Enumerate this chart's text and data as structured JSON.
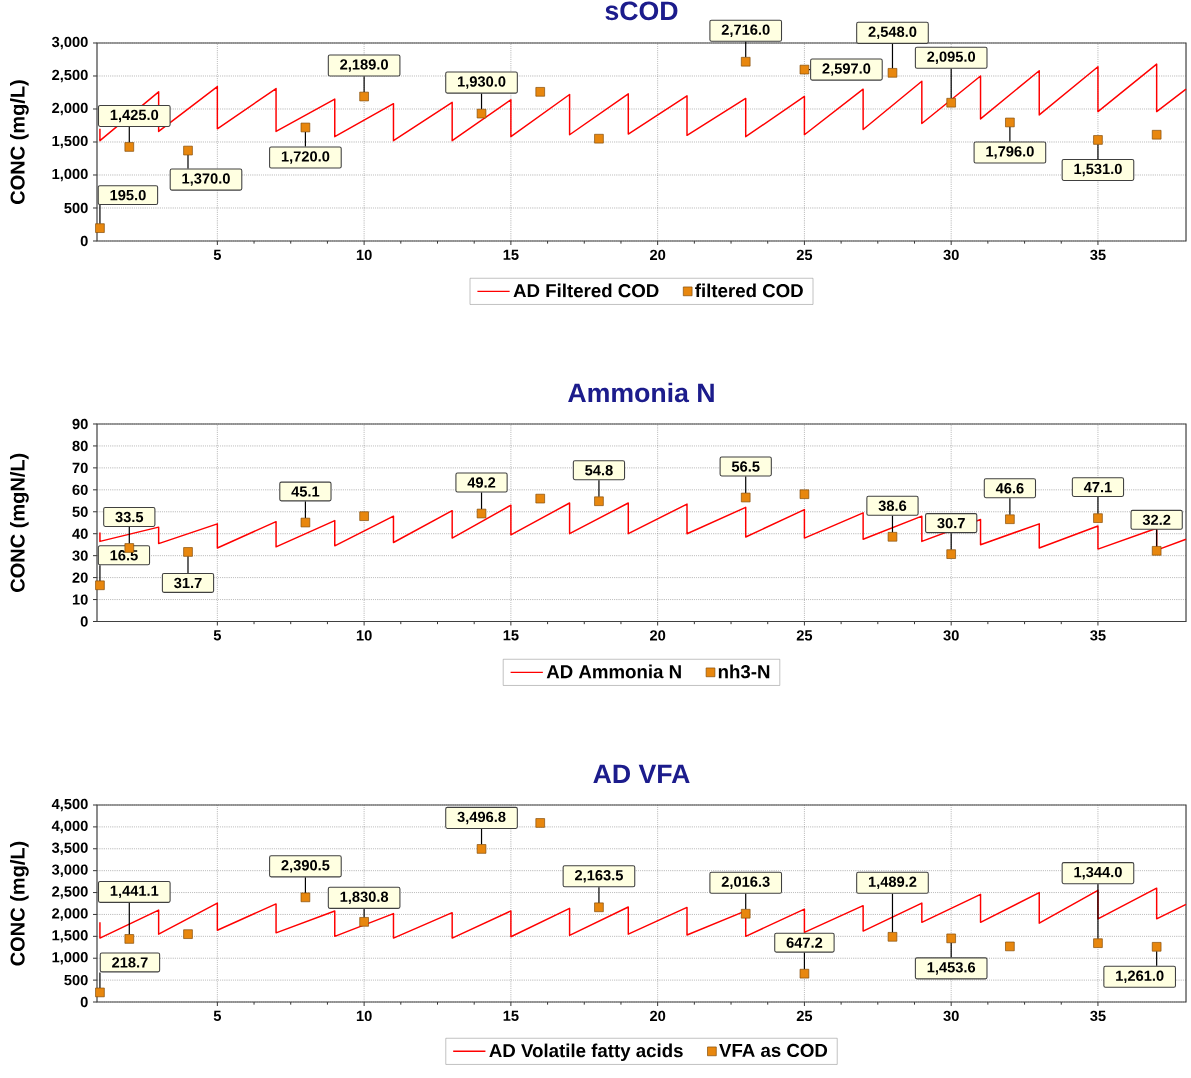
{
  "chart_data": [
    {
      "type": "line",
      "title": "sCOD",
      "ylabel": "CONC (mg/L)",
      "xlim": [
        0.9,
        38
      ],
      "xticks": [
        5,
        10,
        15,
        20,
        25,
        30,
        35
      ],
      "ylim": [
        0,
        3000
      ],
      "yticks": [
        0,
        500,
        {
          "value": 1000,
          "label": "1,000"
        },
        {
          "value": 1500,
          "label": "1,500"
        },
        {
          "value": 2000,
          "label": "2,000"
        },
        {
          "value": 2500,
          "label": "2,500"
        },
        {
          "value": 3000,
          "label": "3,000"
        }
      ],
      "grid": true,
      "legend": "bottom",
      "series": [
        {
          "name": "AD Filtered COD",
          "color": "#ff0000",
          "x": [
            1,
            1,
            3,
            3,
            5,
            5,
            7,
            7,
            9,
            9,
            11,
            11,
            13,
            13,
            15,
            15,
            17,
            17,
            19,
            19,
            21,
            21,
            23,
            23,
            25,
            25,
            27,
            27,
            29,
            29,
            31,
            31,
            33,
            33,
            35,
            35,
            37,
            37,
            38
          ],
          "values": [
            1700,
            1520,
            2260,
            1660,
            2340,
            1700,
            2310,
            1660,
            2150,
            1580,
            2080,
            1520,
            2100,
            1520,
            2140,
            1580,
            2220,
            1610,
            2230,
            1620,
            2200,
            1600,
            2160,
            1580,
            2190,
            1610,
            2300,
            1690,
            2420,
            1780,
            2500,
            1850,
            2580,
            1910,
            2640,
            1960,
            2680,
            1960,
            2300
          ]
        },
        {
          "name": "filtered COD",
          "type": "scatter",
          "marker": "square",
          "color": "#e8870e",
          "x": [
            1,
            2,
            4,
            8,
            10,
            14,
            16,
            18,
            23,
            25,
            28,
            30,
            32,
            35,
            37
          ],
          "values": [
            195.0,
            1425.0,
            1370.0,
            1720.0,
            2189.0,
            1930.0,
            2260,
            1550,
            2716.0,
            2597.0,
            2548.0,
            2095.0,
            1796.0,
            1531.0,
            1610
          ],
          "value_labels": [
            "195.0",
            "1,425.0",
            "1,370.0",
            "1,720.0",
            "2,189.0",
            "1,930.0",
            null,
            null,
            "2,716.0",
            "2,597.0",
            "2,548.0",
            "2,095.0",
            "1,796.0",
            "1,531.0",
            null
          ]
        }
      ]
    },
    {
      "type": "line",
      "title": "Ammonia N",
      "ylabel": "CONC (mgN/L)",
      "xlim": [
        0.9,
        38
      ],
      "xticks": [
        5,
        10,
        15,
        20,
        25,
        30,
        35
      ],
      "ylim": [
        0,
        90
      ],
      "yticks": [
        0,
        10,
        20,
        30,
        40,
        50,
        60,
        70,
        80,
        90
      ],
      "grid": true,
      "legend": "bottom",
      "series": [
        {
          "name": "AD Ammonia N",
          "color": "#ff0000",
          "x": [
            1,
            1,
            3,
            3,
            5,
            5,
            7,
            7,
            9,
            9,
            11,
            11,
            13,
            13,
            15,
            15,
            17,
            17,
            19,
            19,
            21,
            21,
            23,
            23,
            25,
            25,
            27,
            27,
            29,
            29,
            31,
            31,
            33,
            33,
            35,
            35,
            37,
            37,
            38
          ],
          "values": [
            40.5,
            36.5,
            43,
            35.5,
            44.5,
            33.5,
            45.5,
            34,
            46,
            34.5,
            48,
            36,
            50.5,
            38,
            53,
            39.5,
            54,
            40,
            54,
            40,
            53.5,
            40,
            52,
            38.5,
            51,
            38,
            49.5,
            37.5,
            48,
            36.5,
            46.5,
            35,
            44.5,
            33.5,
            43.5,
            33,
            42.5,
            32.5,
            37.5
          ]
        },
        {
          "name": "nh3-N",
          "type": "scatter",
          "marker": "square",
          "color": "#e8870e",
          "x": [
            1,
            2,
            4,
            8,
            10,
            14,
            16,
            18,
            23,
            25,
            28,
            30,
            32,
            35,
            37
          ],
          "values": [
            16.5,
            33.5,
            31.7,
            45.1,
            48,
            49.2,
            56,
            54.8,
            56.5,
            58,
            38.6,
            30.7,
            46.6,
            47.1,
            32.2
          ],
          "value_labels": [
            "16.5",
            "33.5",
            "31.7",
            "45.1",
            null,
            "49.2",
            null,
            "54.8",
            "56.5",
            null,
            "38.6",
            "30.7",
            "46.6",
            "47.1",
            "32.2"
          ]
        }
      ]
    },
    {
      "type": "line",
      "title": "AD VFA",
      "ylabel": "CONC (mg/L)",
      "xlim": [
        0.9,
        38
      ],
      "xticks": [
        5,
        10,
        15,
        20,
        25,
        30,
        35
      ],
      "ylim": [
        0,
        4500
      ],
      "yticks": [
        0,
        500,
        {
          "value": 1000,
          "label": "1,000"
        },
        {
          "value": 1500,
          "label": "1,500"
        },
        {
          "value": 2000,
          "label": "2,000"
        },
        {
          "value": 2500,
          "label": "2,500"
        },
        {
          "value": 3000,
          "label": "3,000"
        },
        {
          "value": 3500,
          "label": "3,500"
        },
        {
          "value": 4000,
          "label": "4,000"
        },
        {
          "value": 4500,
          "label": "4,500"
        }
      ],
      "grid": true,
      "legend": "bottom",
      "series": [
        {
          "name": "AD Volatile fatty acids",
          "color": "#ff0000",
          "x": [
            1,
            1,
            3,
            3,
            5,
            5,
            7,
            7,
            9,
            9,
            11,
            11,
            13,
            13,
            15,
            15,
            17,
            17,
            19,
            19,
            21,
            21,
            23,
            23,
            25,
            25,
            27,
            27,
            29,
            29,
            31,
            31,
            33,
            33,
            35,
            35,
            37,
            37,
            38
          ],
          "values": [
            1820,
            1460,
            2100,
            1550,
            2260,
            1640,
            2240,
            1580,
            2080,
            1500,
            2020,
            1460,
            2040,
            1460,
            2080,
            1490,
            2140,
            1520,
            2170,
            1550,
            2160,
            1530,
            2080,
            1500,
            2120,
            1590,
            2200,
            1620,
            2260,
            1820,
            2460,
            1820,
            2500,
            1800,
            2550,
            1900,
            2600,
            1900,
            2230
          ]
        },
        {
          "name": "VFA as COD",
          "type": "scatter",
          "marker": "square",
          "color": "#e8870e",
          "x": [
            1,
            2,
            4,
            8,
            10,
            14,
            16,
            18,
            23,
            25,
            28,
            30,
            32,
            35,
            37
          ],
          "values": [
            218.7,
            1441.1,
            1550,
            2390.5,
            1830.8,
            3496.8,
            4090,
            2163.5,
            2016.3,
            647.2,
            1489.2,
            1453.6,
            1270,
            1344.0,
            1261.0
          ],
          "value_labels": [
            "218.7",
            "1,441.1",
            null,
            "2,390.5",
            "1,830.8",
            "3,496.8",
            null,
            "2,163.5",
            "2,016.3",
            "647.2",
            "1,489.2",
            "1,453.6",
            null,
            "1,344.0",
            "1,261.0"
          ]
        }
      ]
    }
  ]
}
